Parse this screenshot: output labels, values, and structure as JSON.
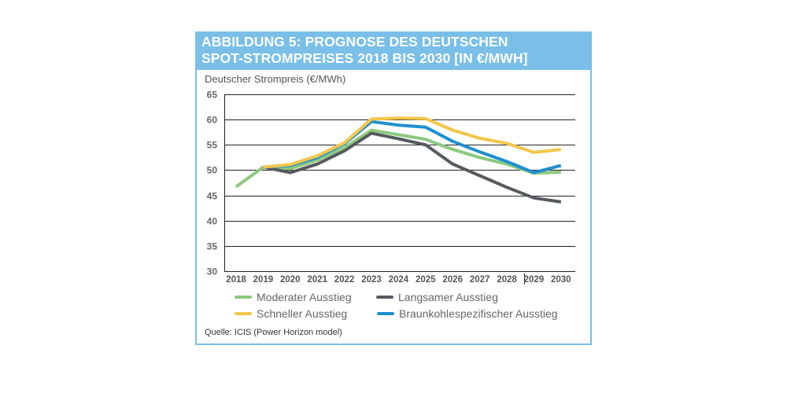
{
  "figure": {
    "title_line1": "ABBILDUNG 5: PROGNOSE DES DEUTSCHEN",
    "title_line2": "SPOT-STROMPREISES 2018 BIS 2030 [IN €/MWH]",
    "header_color": "#79bfe8",
    "source": "Quelle: ICIS (Power Horizon model)"
  },
  "chart_data": {
    "type": "line",
    "title": "ABBILDUNG 5: PROGNOSE DES DEUTSCHEN SPOT-STROMPREISES 2018 BIS 2030 [IN €/MWH]",
    "xlabel": "",
    "ylabel": "Deutscher Strompreis (€/MWh)",
    "ylim": [
      30,
      65
    ],
    "yticks": [
      65,
      60,
      55,
      50,
      45,
      40,
      35,
      30
    ],
    "x": [
      "2018",
      "2019",
      "2020",
      "2021",
      "2022",
      "2023",
      "2024",
      "2025",
      "2026",
      "2027",
      "2028",
      "2029",
      "2030"
    ],
    "grid": true,
    "legend_position": "bottom",
    "series": [
      {
        "name": "Moderater Ausstieg",
        "color": "#8cc97e",
        "values": [
          46.7,
          50.6,
          50.3,
          52.0,
          54.4,
          57.9,
          57.0,
          56.1,
          54.1,
          52.5,
          51.2,
          49.4,
          49.6
        ]
      },
      {
        "name": "Langsamer Ausstieg",
        "color": "#555a5f",
        "values": [
          null,
          50.6,
          49.5,
          51.2,
          53.8,
          57.3,
          56.2,
          55.0,
          51.2,
          48.9,
          46.6,
          44.5,
          43.7
        ]
      },
      {
        "name": "Schneller Ausstieg",
        "color": "#f3c64a",
        "values": [
          null,
          50.6,
          51.1,
          52.8,
          55.4,
          60.1,
          60.3,
          60.2,
          57.9,
          56.3,
          55.3,
          53.5,
          54.1
        ]
      },
      {
        "name": "Braunkohlespezifischer Ausstieg",
        "color": "#1f8fcf",
        "values": [
          null,
          50.6,
          50.9,
          52.5,
          55.2,
          59.6,
          58.9,
          58.5,
          55.7,
          53.6,
          51.7,
          49.5,
          50.9
        ]
      }
    ]
  }
}
